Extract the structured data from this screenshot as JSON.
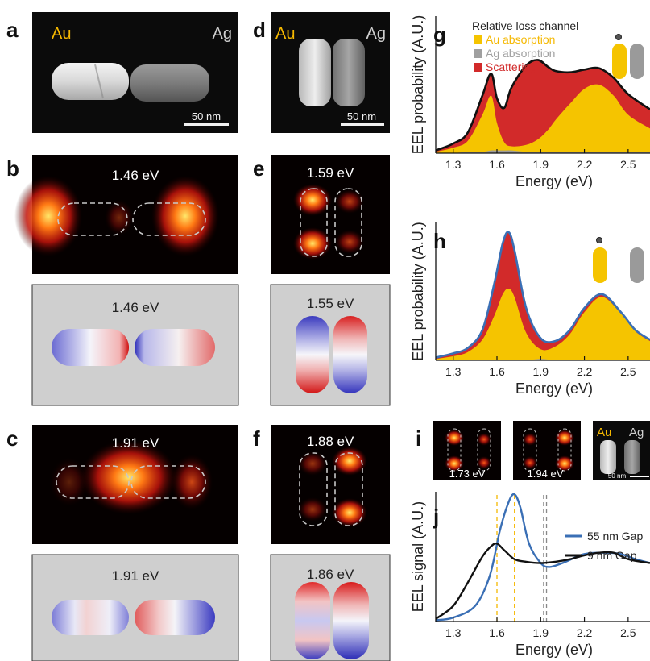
{
  "panel_labels": {
    "a": "a",
    "b": "b",
    "c": "c",
    "d": "d",
    "e": "e",
    "f": "f",
    "g": "g",
    "h": "h",
    "i": "i",
    "j": "j"
  },
  "panel_a": {
    "metal_left": "Au",
    "metal_right": "Ag",
    "scalebar": "50 nm"
  },
  "panel_d": {
    "metal_left": "Au",
    "metal_right": "Ag",
    "scalebar": "50 nm"
  },
  "panel_b": {
    "map_energy": "1.46 eV",
    "sim_energy": "1.46 eV"
  },
  "panel_c": {
    "map_energy": "1.91 eV",
    "sim_energy": "1.91 eV"
  },
  "panel_e": {
    "map_energy": "1.59 eV",
    "sim_energy": "1.55 eV"
  },
  "panel_f": {
    "map_energy": "1.88 eV",
    "sim_energy": "1.86 eV"
  },
  "panel_i": {
    "map1_energy": "1.73 eV",
    "map2_energy": "1.94 eV",
    "metal_left": "Au",
    "metal_right": "Ag",
    "scalebar": "50 nm"
  },
  "colors": {
    "au": "#f5c400",
    "ag": "#9a9a9a",
    "scattering": "#d22a2a",
    "total_g": "#111111",
    "total_h": "#3a6fb5",
    "gap55": "#3a6fb5",
    "gap9": "#111111"
  },
  "chart_data": [
    {
      "panel": "g",
      "type": "area",
      "xlabel": "Energy (eV)",
      "ylabel": "EEL probability (A.U.)",
      "xlim": [
        1.18,
        2.65
      ],
      "ylim": [
        0,
        1
      ],
      "xticks": [
        "1.3",
        "1.6",
        "1.9",
        "2.2",
        "2.5"
      ],
      "legend_title": "Relative loss channel",
      "legend": [
        "Au absorption",
        "Ag absorption",
        "Scattering"
      ],
      "x": [
        1.18,
        1.3,
        1.4,
        1.5,
        1.56,
        1.6,
        1.65,
        1.7,
        1.8,
        1.88,
        1.95,
        2.0,
        2.1,
        2.2,
        2.3,
        2.4,
        2.5,
        2.65
      ],
      "total": [
        0.02,
        0.07,
        0.15,
        0.42,
        0.58,
        0.4,
        0.33,
        0.48,
        0.64,
        0.68,
        0.63,
        0.6,
        0.59,
        0.61,
        0.62,
        0.55,
        0.43,
        0.32
      ],
      "au": [
        0.01,
        0.04,
        0.09,
        0.28,
        0.42,
        0.22,
        0.08,
        0.05,
        0.06,
        0.1,
        0.17,
        0.24,
        0.36,
        0.47,
        0.5,
        0.42,
        0.28,
        0.18
      ],
      "ag": [
        0.0,
        0.0,
        0.01,
        0.01,
        0.02,
        0.02,
        0.02,
        0.02,
        0.01,
        0.01,
        0.01,
        0.01,
        0.01,
        0.01,
        0.01,
        0.01,
        0.01,
        0.01
      ]
    },
    {
      "panel": "h",
      "type": "area",
      "xlabel": "Energy (eV)",
      "ylabel": "EEL probability (A.U.)",
      "xlim": [
        1.18,
        2.65
      ],
      "ylim": [
        0,
        1
      ],
      "xticks": [
        "1.3",
        "1.6",
        "1.9",
        "2.2",
        "2.5"
      ],
      "x": [
        1.18,
        1.3,
        1.4,
        1.5,
        1.58,
        1.64,
        1.68,
        1.72,
        1.8,
        1.9,
        2.0,
        2.1,
        2.2,
        2.32,
        2.45,
        2.55,
        2.65
      ],
      "total": [
        0.02,
        0.05,
        0.09,
        0.22,
        0.55,
        0.85,
        0.93,
        0.8,
        0.38,
        0.16,
        0.14,
        0.22,
        0.38,
        0.48,
        0.35,
        0.22,
        0.15
      ],
      "au": [
        0.01,
        0.03,
        0.06,
        0.15,
        0.32,
        0.48,
        0.52,
        0.46,
        0.2,
        0.08,
        0.1,
        0.19,
        0.35,
        0.46,
        0.34,
        0.21,
        0.14
      ],
      "ag": [
        0.0,
        0.0,
        0.0,
        0.0,
        0.0,
        0.0,
        0.0,
        0.0,
        0.0,
        0.01,
        0.0,
        0.0,
        0.0,
        0.0,
        0.0,
        0.0,
        0.0
      ]
    },
    {
      "panel": "j",
      "type": "line",
      "xlabel": "Energy (eV)",
      "ylabel": "EEL signal (A.U.)",
      "xlim": [
        1.18,
        2.65
      ],
      "ylim": [
        0,
        1
      ],
      "xticks": [
        "1.3",
        "1.6",
        "1.9",
        "2.2",
        "2.5"
      ],
      "vlines_gold": [
        1.6,
        1.72
      ],
      "vlines_gray": [
        1.92,
        1.94
      ],
      "series": [
        {
          "name": "55 nm Gap",
          "x": [
            1.18,
            1.3,
            1.45,
            1.55,
            1.62,
            1.68,
            1.72,
            1.76,
            1.82,
            1.9,
            1.96,
            2.05,
            2.2,
            2.35,
            2.45,
            2.55,
            2.65
          ],
          "y": [
            0.01,
            0.03,
            0.12,
            0.35,
            0.7,
            0.92,
            0.98,
            0.88,
            0.6,
            0.45,
            0.42,
            0.45,
            0.52,
            0.53,
            0.52,
            0.48,
            0.45
          ]
        },
        {
          "name": "9 nm Gap",
          "x": [
            1.18,
            1.3,
            1.4,
            1.5,
            1.56,
            1.6,
            1.65,
            1.72,
            1.8,
            1.9,
            2.0,
            2.1,
            2.2,
            2.3,
            2.4,
            2.5,
            2.65
          ],
          "y": [
            0.02,
            0.12,
            0.3,
            0.5,
            0.58,
            0.6,
            0.55,
            0.48,
            0.46,
            0.45,
            0.46,
            0.48,
            0.51,
            0.53,
            0.53,
            0.48,
            0.45
          ]
        }
      ]
    }
  ]
}
